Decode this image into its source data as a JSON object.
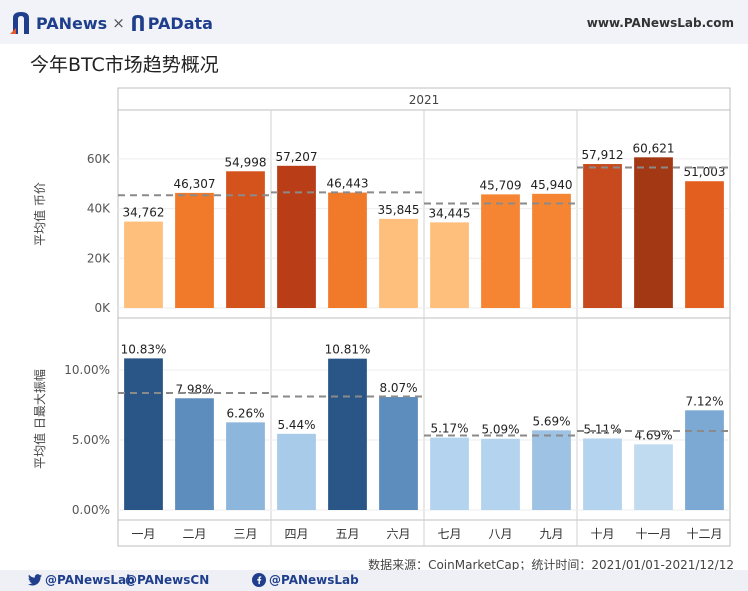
{
  "header": {
    "brand_left": "PANews",
    "separator": "×",
    "brand_right": "PAData",
    "site_url": "www.PANewsLab.com"
  },
  "title": "今年BTC市场趋势概况",
  "footer": {
    "source": "数据来源：CoinMarketCap；统计时间：2021/01/01-2021/12/12",
    "social": [
      {
        "icon": "twitter-icon",
        "handle": "@PANewsLab"
      },
      {
        "icon": "twitter-icon",
        "handle": "@PANewsCN"
      },
      {
        "icon": "facebook-icon",
        "handle": "@PANewsLab"
      }
    ]
  },
  "chart_data": {
    "type": "bar",
    "year_label": "2021",
    "categories": [
      "一月",
      "二月",
      "三月",
      "四月",
      "五月",
      "六月",
      "七月",
      "八月",
      "九月",
      "十月",
      "十一月",
      "十二月"
    ],
    "quarter_groups": [
      [
        0,
        1,
        2
      ],
      [
        3,
        4,
        5
      ],
      [
        6,
        7,
        8
      ],
      [
        9,
        10,
        11
      ]
    ],
    "panels": [
      {
        "ylabel": "平均值 币价",
        "ylim": [
          0,
          70000
        ],
        "ticks": [
          0,
          20000,
          40000,
          60000
        ],
        "tick_labels": [
          "0K",
          "20K",
          "40K",
          "60K"
        ],
        "values": [
          34762,
          46307,
          54998,
          57207,
          46443,
          35845,
          34445,
          45709,
          45940,
          57912,
          60621,
          51003
        ],
        "data_labels": [
          "34,762",
          "46,307",
          "54,998",
          "57,207",
          "46,443",
          "35,845",
          "34,445",
          "45,709",
          "45,940",
          "57,912",
          "60,621",
          "51,003"
        ],
        "quarter_avg": [
          45356,
          46498,
          42031,
          56512
        ],
        "colors": [
          "#fdbf7b",
          "#f07a2a",
          "#d4521c",
          "#b93d17",
          "#f07a2a",
          "#fdbf7b",
          "#fdbf7b",
          "#f58532",
          "#f58532",
          "#c64a1d",
          "#a33814",
          "#e35f20"
        ]
      },
      {
        "ylabel": "平均值 日最大振幅",
        "ylim": [
          0,
          0.12
        ],
        "ticks": [
          0,
          0.05,
          0.1
        ],
        "tick_labels": [
          "0.00%",
          "5.00%",
          "10.00%"
        ],
        "values": [
          0.1083,
          0.0798,
          0.0626,
          0.0544,
          0.1081,
          0.0807,
          0.0517,
          0.0509,
          0.0569,
          0.0511,
          0.0469,
          0.0712
        ],
        "data_labels": [
          "10.83%",
          "7.98%",
          "6.26%",
          "5.44%",
          "10.81%",
          "8.07%",
          "5.17%",
          "5.09%",
          "5.69%",
          "5.11%",
          "4.69%",
          "7.12%"
        ],
        "quarter_avg": [
          0.0836,
          0.0811,
          0.0532,
          0.0564
        ],
        "colors": [
          "#2a5687",
          "#5d8dbd",
          "#8cb6dc",
          "#a7cbe8",
          "#2a5687",
          "#5d8dbd",
          "#b3d3ee",
          "#b3d3ee",
          "#9dc2e3",
          "#b3d3ee",
          "#c0daf0",
          "#7ba9d3"
        ]
      }
    ],
    "grid": true,
    "legend": "none"
  }
}
